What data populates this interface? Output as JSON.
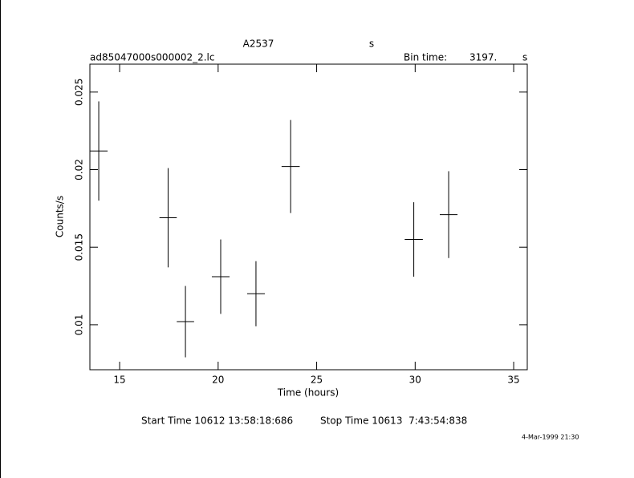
{
  "chart_data": {
    "type": "errorbar",
    "title": "A2537",
    "title_unit": "s",
    "filename": "ad85047000s000002_2.lc",
    "bin_time_label": "Bin time:",
    "bin_time": "3197.",
    "bin_time_unit": "s",
    "xlabel": "Time (hours)",
    "ylabel": "Counts/s",
    "start_time": "Start Time 10612 13:58:18:686",
    "stop_time": "Stop Time 10613  7:43:54:838",
    "timestamp": "4-Mar-1999 21:30",
    "x": [
      13.94,
      17.46,
      18.34,
      20.13,
      21.92,
      23.68,
      29.93,
      31.7
    ],
    "xerr": [
      0.45,
      0.44,
      0.44,
      0.45,
      0.45,
      0.46,
      0.46,
      0.45
    ],
    "values": [
      0.0212,
      0.0169,
      0.0102,
      0.0131,
      0.012,
      0.0202,
      0.0155,
      0.0171
    ],
    "yerr": [
      0.0032,
      0.0032,
      0.0023,
      0.0024,
      0.0021,
      0.003,
      0.0024,
      0.0028
    ],
    "color": "#000000",
    "xlim": [
      13.49,
      35.69
    ],
    "xticks": [
      15,
      20,
      25,
      30,
      35
    ],
    "ylim": [
      0.0071,
      0.0268
    ],
    "yticks": [
      0.01,
      0.015,
      0.02,
      0.025
    ],
    "grid": false
  }
}
